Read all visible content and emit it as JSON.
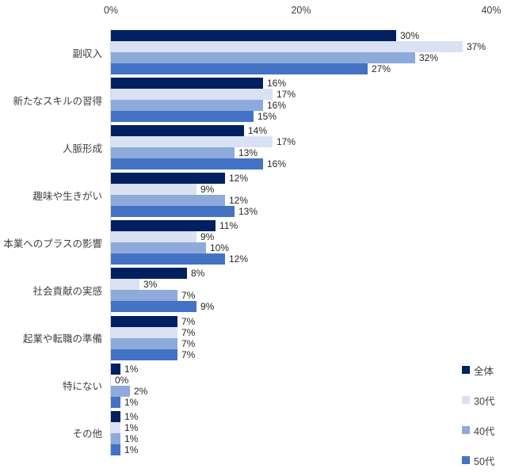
{
  "chart_data": {
    "type": "bar",
    "orientation": "horizontal",
    "title": "",
    "categories": [
      "副収入",
      "新たなスキルの習得",
      "人脈形成",
      "趣味や生きがい",
      "本業へのプラスの影響",
      "社会貢献の実感",
      "起業や転職の準備",
      "特にない",
      "その他"
    ],
    "series": [
      {
        "name": "全体",
        "color": "#002060",
        "values": [
          30,
          16,
          14,
          12,
          11,
          8,
          7,
          1,
          1
        ]
      },
      {
        "name": "30代",
        "color": "#d9e2f3",
        "values": [
          37,
          17,
          17,
          9,
          9,
          3,
          7,
          0,
          1
        ]
      },
      {
        "name": "40代",
        "color": "#8eaadb",
        "values": [
          32,
          16,
          13,
          12,
          10,
          7,
          7,
          2,
          1
        ]
      },
      {
        "name": "50代",
        "color": "#4472c4",
        "values": [
          27,
          15,
          16,
          13,
          12,
          9,
          7,
          1,
          1
        ]
      }
    ],
    "xlim": [
      0,
      40
    ],
    "x_ticks": [
      {
        "label": "0%",
        "value": 0
      },
      {
        "label": "20%",
        "value": 20
      },
      {
        "label": "40%",
        "value": 40
      }
    ],
    "value_suffix": "%",
    "grid": false,
    "legend": {
      "position": "bottom-right",
      "entries": [
        "全体",
        "30代",
        "40代",
        "50代"
      ]
    },
    "axis_line_color": "#d6d6d6"
  }
}
